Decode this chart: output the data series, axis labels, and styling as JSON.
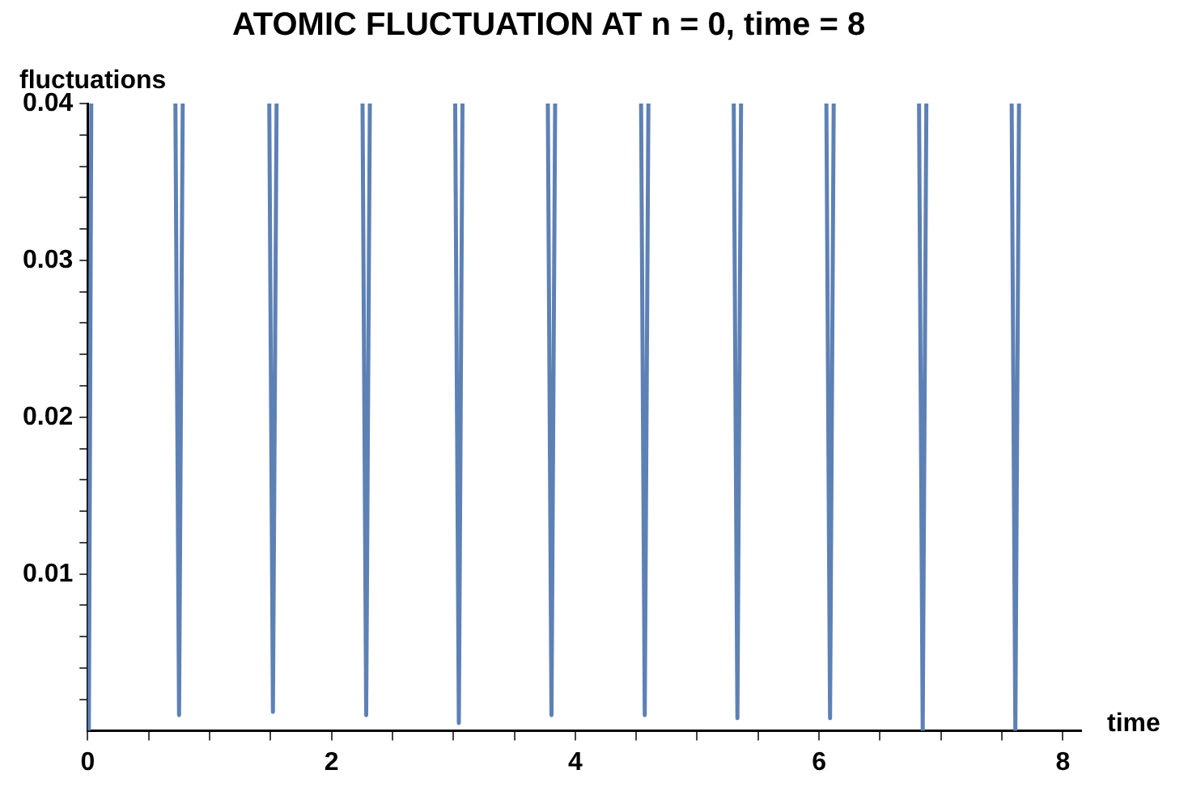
{
  "chart_data": {
    "type": "line",
    "title": "ATOMIC FLUCTUATION AT n = 0, time = 8",
    "xlabel": "time",
    "ylabel": "fluctuations",
    "x": [
      0.01,
      0.03,
      0.5,
      0.72,
      0.75,
      0.78,
      1.0,
      1.49,
      1.52,
      1.55,
      2.0,
      2.255,
      2.285,
      2.315,
      2.6,
      3.015,
      3.045,
      3.075,
      3.4,
      3.775,
      3.805,
      3.835,
      4.2,
      4.54,
      4.57,
      4.6,
      5.0,
      5.3,
      5.33,
      5.36,
      5.7,
      6.06,
      6.09,
      6.12,
      6.5,
      6.82,
      6.85,
      6.88,
      7.2,
      7.58,
      7.61,
      7.64
    ],
    "series": [
      {
        "color": "#5e81b5",
        "values": [
          0,
          0.04,
          null,
          0.04,
          0.001,
          0.04,
          null,
          0.04,
          0.0012,
          0.04,
          null,
          0.04,
          0.001,
          0.04,
          null,
          0.04,
          0.0005,
          0.04,
          null,
          0.04,
          0.001,
          0.04,
          null,
          0.04,
          0.001,
          0.04,
          null,
          0.04,
          0.0008,
          0.04,
          null,
          0.04,
          0.0008,
          0.04,
          null,
          0.04,
          0,
          0.04,
          null,
          0.04,
          0,
          0.04
        ]
      }
    ],
    "xlim": [
      0,
      8.15
    ],
    "ylim": [
      0,
      0.04
    ],
    "xticks": [
      0,
      {
        "value": 0.5,
        "label": null
      },
      {
        "value": 1,
        "label": null
      },
      {
        "value": 1.5,
        "label": null
      },
      2,
      {
        "value": 2.5,
        "label": null
      },
      {
        "value": 3,
        "label": null
      },
      {
        "value": 3.5,
        "label": null
      },
      4,
      {
        "value": 4.5,
        "label": null
      },
      {
        "value": 5,
        "label": null
      },
      {
        "value": 5.5,
        "label": null
      },
      6,
      {
        "value": 6.5,
        "label": null
      },
      {
        "value": 7,
        "label": null
      },
      {
        "value": 7.5,
        "label": null
      },
      8
    ],
    "yticks": [
      {
        "value": 0.002,
        "label": null
      },
      {
        "value": 0.004,
        "label": null
      },
      {
        "value": 0.006,
        "label": null
      },
      {
        "value": 0.008,
        "label": null
      },
      0.01,
      {
        "value": 0.012,
        "label": null
      },
      {
        "value": 0.014,
        "label": null
      },
      {
        "value": 0.016,
        "label": null
      },
      {
        "value": 0.018,
        "label": null
      },
      0.02,
      {
        "value": 0.022,
        "label": null
      },
      {
        "value": 0.024,
        "label": null
      },
      {
        "value": 0.026,
        "label": null
      },
      {
        "value": 0.028,
        "label": null
      },
      0.03,
      {
        "value": 0.032,
        "label": null
      },
      {
        "value": 0.034,
        "label": null
      },
      {
        "value": 0.036,
        "label": null
      },
      {
        "value": 0.038,
        "label": null
      },
      0.04
    ],
    "grid": false,
    "legend": false,
    "marker": "none",
    "line_style": "solid"
  }
}
